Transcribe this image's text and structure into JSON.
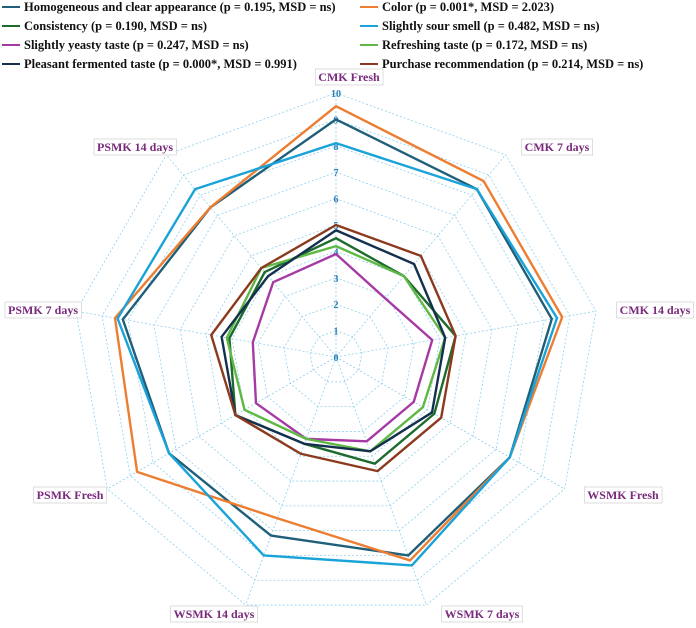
{
  "chart_data": {
    "type": "radar",
    "axes": [
      "CMK Fresh",
      "CMK 7 days",
      "CMK 14 days",
      "WSMK Fresh",
      "WSMK 7 days",
      "WSMK 14 days",
      "PSMK Fresh",
      "PSMK 7 days",
      "PSMK 14 days"
    ],
    "rlim": [
      0,
      10
    ],
    "ticks": [
      "0",
      "1",
      "2",
      "3",
      "4",
      "5",
      "6",
      "7",
      "8",
      "9",
      "10"
    ],
    "grid": true,
    "legend_position": "top",
    "series": [
      {
        "name": "Homogeneous and clear appearance (p = 0.195, MSD = ns)",
        "color": "#1f5f7a",
        "values": [
          9.0,
          8.3,
          8.3,
          7.6,
          8.0,
          7.2,
          7.3,
          8.2,
          7.4
        ]
      },
      {
        "name": "Color (p = 0.001*, MSD = 2.023)",
        "color": "#ed7d31",
        "values": [
          9.5,
          8.7,
          8.7,
          7.6,
          8.2,
          6.5,
          8.7,
          8.5,
          7.4
        ]
      },
      {
        "name": "Consistency (p = 0.190, MSD = ns)",
        "color": "#1e6b2e",
        "values": [
          4.5,
          4.0,
          4.6,
          4.3,
          4.3,
          3.5,
          4.4,
          4.1,
          4.2
        ]
      },
      {
        "name": "Slightly sour smell (p = 0.482, MSD = ns)",
        "color": "#1aa3d8",
        "values": [
          8.1,
          8.3,
          8.5,
          7.6,
          8.4,
          8.0,
          7.3,
          8.4,
          8.3
        ]
      },
      {
        "name": "Slightly yeasty taste (p = 0.247, MSD = ns)",
        "color": "#a53aa5",
        "values": [
          3.9,
          2.9,
          3.7,
          3.4,
          3.4,
          3.3,
          3.5,
          3.2,
          3.7
        ]
      },
      {
        "name": "Refreshing taste (p = 0.172, MSD = ns)",
        "color": "#5fb845",
        "values": [
          4.2,
          4.0,
          4.2,
          3.8,
          3.8,
          3.3,
          4.0,
          4.2,
          4.4
        ]
      },
      {
        "name": "Pleasant fermented taste (p = 0.000*, MSD = 0.991)",
        "color": "#14304f",
        "values": [
          4.8,
          4.6,
          4.2,
          4.2,
          3.8,
          3.5,
          4.4,
          4.4,
          4.0
        ]
      },
      {
        "name": "Purchase recommendation (p = 0.214, MSD = ns)",
        "color": "#8b3a1e",
        "values": [
          5.0,
          5.0,
          4.6,
          4.6,
          4.6,
          3.9,
          4.4,
          4.8,
          4.4
        ]
      }
    ]
  }
}
